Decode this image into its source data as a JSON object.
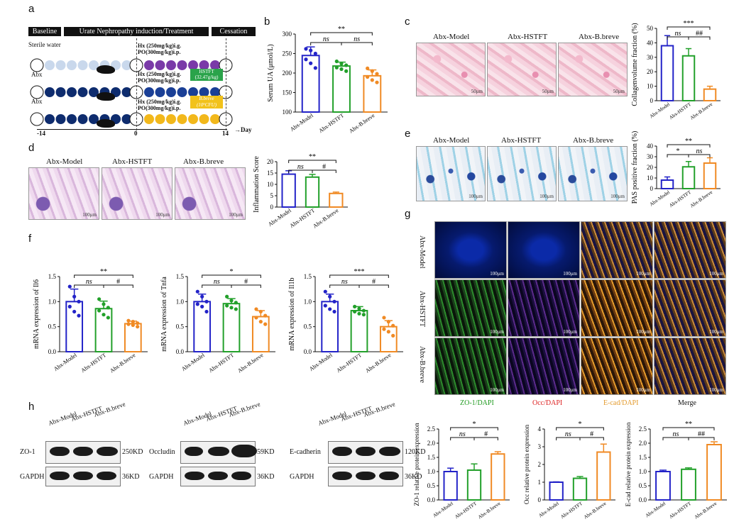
{
  "panels": {
    "a": {
      "letter": "a",
      "baseline": "Baseline",
      "induction": "Urate Nephropathy induction/Treatment",
      "cessation": "Cessation",
      "rows": [
        {
          "left": "Sterile water",
          "reg1": "Hx (250mg/kg)i.g.",
          "reg2": "PO(300mg/kg)i.p.",
          "tag": ""
        },
        {
          "left": "Abx",
          "reg1": "Hx (250mg/kg)i.g.",
          "reg2": "PO(300mg/kg)i.p.",
          "tag": "HSTFT (32.47g/kg)"
        },
        {
          "left": "Abx",
          "reg1": "Hx (250mg/kg)i.g.",
          "reg2": "PO(300mg/kg)i.p.",
          "tag": "B.breve (10⁹CFU)"
        }
      ],
      "days": [
        "-14",
        "0",
        "14"
      ],
      "day_label": "Day"
    },
    "b": {
      "letter": "b"
    },
    "c": {
      "letter": "c",
      "images": [
        "Abx-Model",
        "Abx-HSTFT",
        "Abx-B.breve"
      ],
      "scale": "50μm"
    },
    "d": {
      "letter": "d",
      "images": [
        "Abx-Model",
        "Abx-HSTFT",
        "Abx-B.breve"
      ],
      "scale": "100μm"
    },
    "e": {
      "letter": "e",
      "images": [
        "Abx-Model",
        "Abx-HSTFT",
        "Abx-B.breve"
      ],
      "scale": "100μm"
    },
    "f": {
      "letter": "f"
    },
    "g": {
      "letter": "g",
      "rows": [
        "Abx-Model",
        "Abx-HSTFT",
        "Abx-B.breve"
      ],
      "cols": [
        "ZO-1/DAPI",
        "Occ/DAPI",
        "E-cad/DAPI",
        "Merge"
      ],
      "scale": "100μm"
    },
    "h": {
      "letter": "h",
      "blots": [
        {
          "target": "ZO-1",
          "target_kd": "250KD",
          "ref": "GAPDH",
          "ref_kd": "36KD"
        },
        {
          "target": "Occludin",
          "target_kd": "59KD",
          "ref": "GAPDH",
          "ref_kd": "36KD"
        },
        {
          "target": "E-cadherin",
          "target_kd": "120KD",
          "ref": "GAPDH",
          "ref_kd": "36KD"
        }
      ],
      "groups": [
        "Abx-Model",
        "Abx-HSTFT",
        "Abx-B.breve"
      ]
    }
  },
  "colors": {
    "model": "#2323c8",
    "hstft": "#22a02a",
    "breve": "#f08a24"
  },
  "chart_data": [
    {
      "id": "b",
      "type": "bar",
      "categories": [
        "Abx-Model",
        "Abx-HSTFT",
        "Abx-B.breve"
      ],
      "values": [
        245,
        218,
        193
      ],
      "errors": [
        22,
        10,
        15
      ],
      "ylabel": "Serum UA (μmol/L)",
      "ylim": [
        100,
        300
      ],
      "yticks": [
        100,
        150,
        200,
        250,
        300
      ],
      "points": [
        [
          262,
          258,
          250,
          235,
          225,
          213
        ],
        [
          230,
          224,
          220,
          214,
          210,
          205
        ],
        [
          212,
          205,
          198,
          190,
          182,
          176
        ]
      ],
      "sig": [
        {
          "a": 0,
          "b": 2,
          "t": "**"
        },
        {
          "a": 0,
          "b": 1,
          "t": "ns"
        },
        {
          "a": 1,
          "b": 2,
          "t": "ns"
        }
      ]
    },
    {
      "id": "c",
      "type": "bar",
      "categories": [
        "Abx-Model",
        "Abx-HSTFT",
        "Abx-B.breve"
      ],
      "values": [
        38,
        31,
        8
      ],
      "errors": [
        7,
        5,
        2
      ],
      "ylabel": "Collagenvolume fraction (%)",
      "ylim": [
        0,
        50
      ],
      "yticks": [
        0,
        10,
        20,
        30,
        40,
        50
      ],
      "sig": [
        {
          "a": 0,
          "b": 2,
          "t": "***"
        },
        {
          "a": 0,
          "b": 1,
          "t": "ns"
        },
        {
          "a": 1,
          "b": 2,
          "t": "##"
        }
      ]
    },
    {
      "id": "d",
      "type": "bar",
      "categories": [
        "Abx-Model",
        "Abx-HSTFT",
        "Abx-B.breve"
      ],
      "values": [
        14.5,
        13.2,
        6.0
      ],
      "errors": [
        1.5,
        1.2,
        0.6
      ],
      "ylabel": "Inflammation Score",
      "ylim": [
        0,
        20
      ],
      "yticks": [
        0,
        5,
        10,
        15,
        20
      ],
      "sig": [
        {
          "a": 0,
          "b": 2,
          "t": "**"
        },
        {
          "a": 0,
          "b": 1,
          "t": "ns"
        },
        {
          "a": 1,
          "b": 2,
          "t": "#"
        }
      ]
    },
    {
      "id": "e",
      "type": "bar",
      "categories": [
        "Abx-Model",
        "Abx-HSTFT",
        "Abx-B.breve"
      ],
      "values": [
        8,
        20.5,
        24
      ],
      "errors": [
        3,
        5,
        5
      ],
      "ylabel": "PAS positive fraction (%)",
      "ylim": [
        0,
        40
      ],
      "yticks": [
        0,
        10,
        20,
        30,
        40
      ],
      "sig": [
        {
          "a": 0,
          "b": 2,
          "t": "**"
        },
        {
          "a": 0,
          "b": 1,
          "t": "*"
        },
        {
          "a": 1,
          "b": 2,
          "t": "ns"
        }
      ]
    },
    {
      "id": "f1",
      "type": "bar",
      "categories": [
        "Abx-Model",
        "Abx-HSTFT",
        "Abx-B.breve"
      ],
      "values": [
        1.0,
        0.86,
        0.56
      ],
      "errors": [
        0.25,
        0.15,
        0.05
      ],
      "ylabel": "mRNA expression of Il6",
      "ylim": [
        0,
        1.5
      ],
      "yticks": [
        0.0,
        0.5,
        1.0,
        1.5
      ],
      "points": [
        [
          1.3,
          1.1,
          1.0,
          0.9,
          0.8,
          0.72
        ],
        [
          1.05,
          0.95,
          0.88,
          0.82,
          0.74,
          0.68
        ],
        [
          0.62,
          0.6,
          0.57,
          0.55,
          0.53,
          0.5
        ]
      ],
      "sig": [
        {
          "a": 0,
          "b": 2,
          "t": "**"
        },
        {
          "a": 0,
          "b": 1,
          "t": "ns"
        },
        {
          "a": 1,
          "b": 2,
          "t": "#"
        }
      ]
    },
    {
      "id": "f2",
      "type": "bar",
      "categories": [
        "Abx-Model",
        "Abx-HSTFT",
        "Abx-B.breve"
      ],
      "values": [
        1.0,
        0.96,
        0.7
      ],
      "errors": [
        0.15,
        0.1,
        0.12
      ],
      "ylabel": "mRNA expression of Tnfa",
      "ylim": [
        0,
        1.5
      ],
      "yticks": [
        0.0,
        0.5,
        1.0,
        1.5
      ],
      "points": [
        [
          1.2,
          1.1,
          1.0,
          0.95,
          0.9,
          0.8
        ],
        [
          1.1,
          1.02,
          0.98,
          0.92,
          0.88,
          0.85
        ],
        [
          0.85,
          0.8,
          0.72,
          0.68,
          0.6,
          0.55
        ]
      ],
      "sig": [
        {
          "a": 0,
          "b": 2,
          "t": "*"
        },
        {
          "a": 0,
          "b": 1,
          "t": "ns"
        },
        {
          "a": 1,
          "b": 2,
          "t": "#"
        }
      ]
    },
    {
      "id": "f3",
      "type": "bar",
      "categories": [
        "Abx-Model",
        "Abx-HSTFT",
        "Abx-B.breve"
      ],
      "values": [
        1.0,
        0.82,
        0.5
      ],
      "errors": [
        0.15,
        0.08,
        0.12
      ],
      "ylabel": "mRNA expression of Il1b",
      "ylim": [
        0,
        1.5
      ],
      "yticks": [
        0.0,
        0.5,
        1.0,
        1.5
      ],
      "points": [
        [
          1.2,
          1.1,
          1.0,
          0.92,
          0.85,
          0.8
        ],
        [
          0.9,
          0.86,
          0.82,
          0.8,
          0.76,
          0.74
        ],
        [
          0.68,
          0.6,
          0.52,
          0.45,
          0.4,
          0.32
        ]
      ],
      "sig": [
        {
          "a": 0,
          "b": 2,
          "t": "***"
        },
        {
          "a": 0,
          "b": 1,
          "t": "ns"
        },
        {
          "a": 1,
          "b": 2,
          "t": "#"
        }
      ]
    },
    {
      "id": "h1",
      "type": "bar",
      "categories": [
        "Abx-Model",
        "Abx-HSTFT",
        "Abx-B.breve"
      ],
      "values": [
        1.0,
        1.05,
        1.62
      ],
      "errors": [
        0.12,
        0.22,
        0.08
      ],
      "ylabel": "ZO-1 relative protein expression",
      "ylim": [
        0,
        2.5
      ],
      "yticks": [
        0.0,
        0.5,
        1.0,
        1.5,
        2.0,
        2.5
      ],
      "sig": [
        {
          "a": 0,
          "b": 2,
          "t": "*"
        },
        {
          "a": 0,
          "b": 1,
          "t": "ns"
        },
        {
          "a": 1,
          "b": 2,
          "t": "#"
        }
      ]
    },
    {
      "id": "h2",
      "type": "bar",
      "categories": [
        "Abx-Model",
        "Abx-HSTFT",
        "Abx-B.breve"
      ],
      "values": [
        1.0,
        1.22,
        2.7
      ],
      "errors": [
        0.02,
        0.1,
        0.45
      ],
      "ylabel": "Occ relative protein expression",
      "ylim": [
        0,
        4
      ],
      "yticks": [
        0,
        1,
        2,
        3,
        4
      ],
      "sig": [
        {
          "a": 0,
          "b": 2,
          "t": "*"
        },
        {
          "a": 0,
          "b": 1,
          "t": "ns"
        },
        {
          "a": 1,
          "b": 2,
          "t": "#"
        }
      ]
    },
    {
      "id": "h3",
      "type": "bar",
      "categories": [
        "Abx-Model",
        "Abx-HSTFT",
        "Abx-B.breve"
      ],
      "values": [
        1.0,
        1.08,
        1.95
      ],
      "errors": [
        0.05,
        0.05,
        0.1
      ],
      "ylabel": "E-cad relative protein expression",
      "ylim": [
        0,
        2.5
      ],
      "yticks": [
        0.0,
        0.5,
        1.0,
        1.5,
        2.0,
        2.5
      ],
      "sig": [
        {
          "a": 0,
          "b": 2,
          "t": "**"
        },
        {
          "a": 0,
          "b": 1,
          "t": "ns"
        },
        {
          "a": 1,
          "b": 2,
          "t": "##"
        }
      ]
    }
  ]
}
